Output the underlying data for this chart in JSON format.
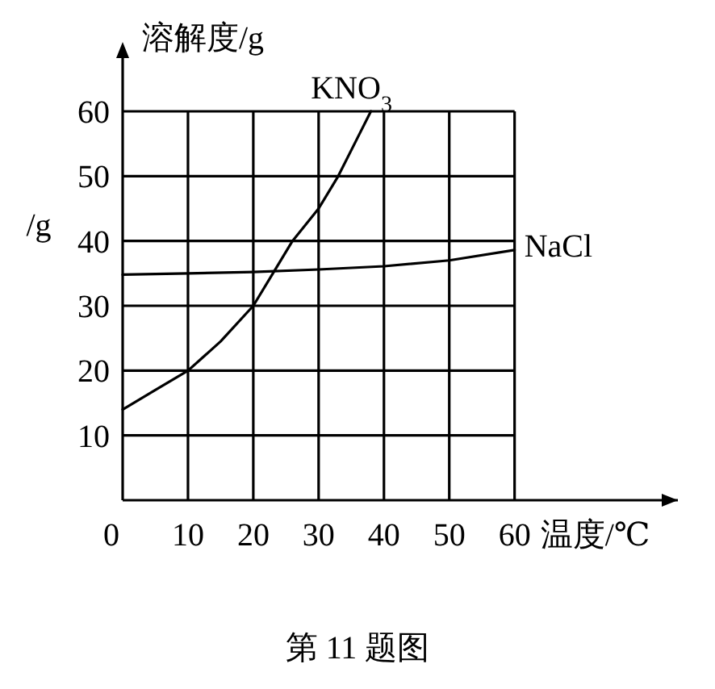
{
  "chart_data": {
    "type": "line",
    "xlabel": "温度/℃",
    "ylabel": "溶解度/g",
    "xlim": [
      0,
      85
    ],
    "ylim": [
      0,
      60
    ],
    "xticks": [
      0,
      10,
      20,
      30,
      40,
      50,
      60
    ],
    "yticks": [
      {
        "value": 0,
        "label": null
      },
      10,
      20,
      30,
      40,
      50,
      60
    ],
    "grid": true,
    "series": [
      {
        "name": "KNO$_{3}$",
        "color": "#000000",
        "x": [
          0,
          5,
          10,
          15,
          20,
          23,
          26,
          30,
          33,
          36,
          38
        ],
        "values": [
          14,
          17,
          20,
          24.5,
          30,
          35,
          40,
          45,
          50,
          56,
          60
        ]
      },
      {
        "name": "NaCl",
        "color": "#000000",
        "x": [
          0,
          10,
          20,
          30,
          40,
          50,
          60
        ],
        "values": [
          34.8,
          35,
          35.2,
          35.6,
          36.1,
          37,
          38.6
        ]
      }
    ],
    "annotations": [
      "/g",
      "第 11 题图"
    ]
  }
}
